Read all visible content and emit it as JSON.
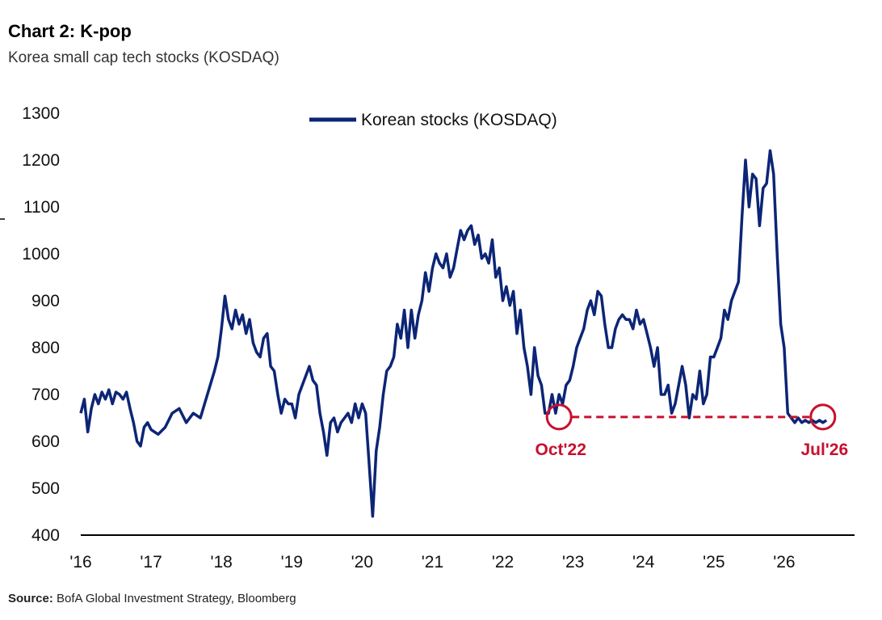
{
  "title": "Chart 2: K-pop",
  "subtitle": "Korea small cap tech stocks (KOSDAQ)",
  "source_label": "Source:",
  "source_text": " BofA Global Investment Strategy, Bloomberg",
  "colors": {
    "series": "#0c2576",
    "annotation": "#c8102e",
    "axis": "#000000"
  },
  "chart_data": {
    "type": "line",
    "title": "Chart 2: K-pop",
    "subtitle": "Korea small cap tech stocks (KOSDAQ)",
    "xlabel": "",
    "ylabel": "",
    "xlim": [
      2016.0,
      2027.0
    ],
    "ylim": [
      400,
      1300
    ],
    "yticks": [
      400,
      500,
      600,
      700,
      800,
      900,
      1000,
      1100,
      1200,
      1300
    ],
    "xticks": [
      {
        "value": 2016,
        "label": "'16"
      },
      {
        "value": 2017,
        "label": "'17"
      },
      {
        "value": 2018,
        "label": "'18"
      },
      {
        "value": 2019,
        "label": "'19"
      },
      {
        "value": 2020,
        "label": "'20"
      },
      {
        "value": 2021,
        "label": "'21"
      },
      {
        "value": 2022,
        "label": "'22"
      },
      {
        "value": 2023,
        "label": "'23"
      },
      {
        "value": 2024,
        "label": "'24"
      },
      {
        "value": 2025,
        "label": "'25"
      },
      {
        "value": 2026,
        "label": "'26"
      }
    ],
    "grid": false,
    "legend": {
      "position": "top-center",
      "entries": [
        "Korean stocks (KOSDAQ)"
      ]
    },
    "series": [
      {
        "name": "Korean stocks (KOSDAQ)",
        "x": [
          2016.0,
          2016.05,
          2016.1,
          2016.15,
          2016.2,
          2016.25,
          2016.3,
          2016.35,
          2016.4,
          2016.45,
          2016.5,
          2016.55,
          2016.6,
          2016.65,
          2016.7,
          2016.75,
          2016.8,
          2016.85,
          2016.9,
          2016.95,
          2017.0,
          2017.1,
          2017.2,
          2017.3,
          2017.4,
          2017.5,
          2017.6,
          2017.7,
          2017.8,
          2017.9,
          2017.95,
          2018.0,
          2018.05,
          2018.1,
          2018.15,
          2018.2,
          2018.25,
          2018.3,
          2018.35,
          2018.4,
          2018.45,
          2018.5,
          2018.55,
          2018.6,
          2018.65,
          2018.7,
          2018.75,
          2018.8,
          2018.85,
          2018.9,
          2018.95,
          2019.0,
          2019.05,
          2019.1,
          2019.15,
          2019.2,
          2019.25,
          2019.3,
          2019.35,
          2019.4,
          2019.45,
          2019.5,
          2019.55,
          2019.6,
          2019.65,
          2019.7,
          2019.75,
          2019.8,
          2019.85,
          2019.9,
          2019.95,
          2020.0,
          2020.05,
          2020.1,
          2020.15,
          2020.2,
          2020.25,
          2020.3,
          2020.35,
          2020.4,
          2020.45,
          2020.5,
          2020.55,
          2020.6,
          2020.65,
          2020.7,
          2020.75,
          2020.8,
          2020.85,
          2020.9,
          2020.95,
          2021.0,
          2021.05,
          2021.1,
          2021.15,
          2021.2,
          2021.25,
          2021.3,
          2021.35,
          2021.4,
          2021.45,
          2021.5,
          2021.55,
          2021.6,
          2021.65,
          2021.7,
          2021.75,
          2021.8,
          2021.85,
          2021.9,
          2021.95,
          2022.0,
          2022.05,
          2022.1,
          2022.15,
          2022.2,
          2022.25,
          2022.3,
          2022.35,
          2022.4,
          2022.45,
          2022.5,
          2022.55,
          2022.6,
          2022.65,
          2022.7,
          2022.75,
          2022.8,
          2022.85,
          2022.9,
          2022.95,
          2023.0,
          2023.05,
          2023.1,
          2023.15,
          2023.2,
          2023.25,
          2023.3,
          2023.35,
          2023.4,
          2023.45,
          2023.5,
          2023.55,
          2023.6,
          2023.65,
          2023.7,
          2023.75,
          2023.8,
          2023.85,
          2023.9,
          2023.95,
          2024.0,
          2024.05,
          2024.1,
          2024.15,
          2024.2,
          2024.25,
          2024.3,
          2024.35,
          2024.4,
          2024.45,
          2024.5,
          2024.55,
          2024.6,
          2024.65,
          2024.7,
          2024.75,
          2024.8,
          2024.85,
          2024.9,
          2024.95,
          2025.0,
          2025.05,
          2025.1,
          2025.15,
          2025.2,
          2025.25,
          2025.3,
          2025.35,
          2025.4,
          2025.45,
          2025.5,
          2025.55,
          2025.6,
          2025.65,
          2025.7,
          2025.75,
          2025.8,
          2025.85,
          2025.9,
          2025.95,
          2026.0,
          2026.05,
          2026.1,
          2026.15,
          2026.2,
          2026.25,
          2026.3,
          2026.35,
          2026.4,
          2026.45,
          2026.5,
          2026.55,
          2026.6
        ],
        "values": [
          660,
          690,
          620,
          670,
          700,
          680,
          705,
          690,
          710,
          680,
          705,
          700,
          690,
          705,
          670,
          640,
          600,
          590,
          630,
          640,
          625,
          615,
          630,
          660,
          670,
          640,
          660,
          650,
          700,
          750,
          780,
          840,
          910,
          860,
          840,
          880,
          850,
          870,
          830,
          860,
          810,
          790,
          780,
          820,
          830,
          760,
          750,
          700,
          660,
          690,
          680,
          680,
          650,
          700,
          720,
          740,
          760,
          730,
          720,
          660,
          620,
          570,
          640,
          650,
          620,
          640,
          650,
          660,
          640,
          680,
          650,
          680,
          660,
          550,
          440,
          580,
          630,
          700,
          750,
          760,
          780,
          850,
          820,
          880,
          800,
          880,
          820,
          870,
          900,
          960,
          920,
          970,
          1000,
          980,
          970,
          1000,
          950,
          970,
          1010,
          1050,
          1030,
          1050,
          1060,
          1020,
          1040,
          990,
          1000,
          980,
          1030,
          950,
          970,
          900,
          930,
          890,
          920,
          830,
          880,
          800,
          760,
          700,
          800,
          740,
          720,
          660,
          660,
          700,
          660,
          700,
          680,
          720,
          730,
          760,
          800,
          820,
          840,
          880,
          900,
          870,
          920,
          910,
          850,
          800,
          800,
          840,
          860,
          870,
          860,
          860,
          840,
          880,
          850,
          860,
          830,
          800,
          760,
          800,
          700,
          700,
          720,
          660,
          680,
          720,
          760,
          720,
          650,
          700,
          690,
          750,
          680,
          700,
          780,
          780,
          800,
          820,
          880,
          860,
          900,
          920,
          940,
          1080,
          1200,
          1100,
          1170,
          1160,
          1060,
          1140,
          1150,
          1220,
          1170,
          1000,
          850,
          800,
          660,
          650,
          640,
          650,
          640,
          645,
          640,
          645,
          640,
          645,
          640,
          645
        ],
        "note": "series digitized approximately from the plotted line"
      }
    ],
    "annotations": [
      {
        "label": "Oct'22",
        "x": 2022.8,
        "y": 652
      },
      {
        "label": "Jul'26",
        "x": 2026.55,
        "y": 652
      }
    ]
  }
}
